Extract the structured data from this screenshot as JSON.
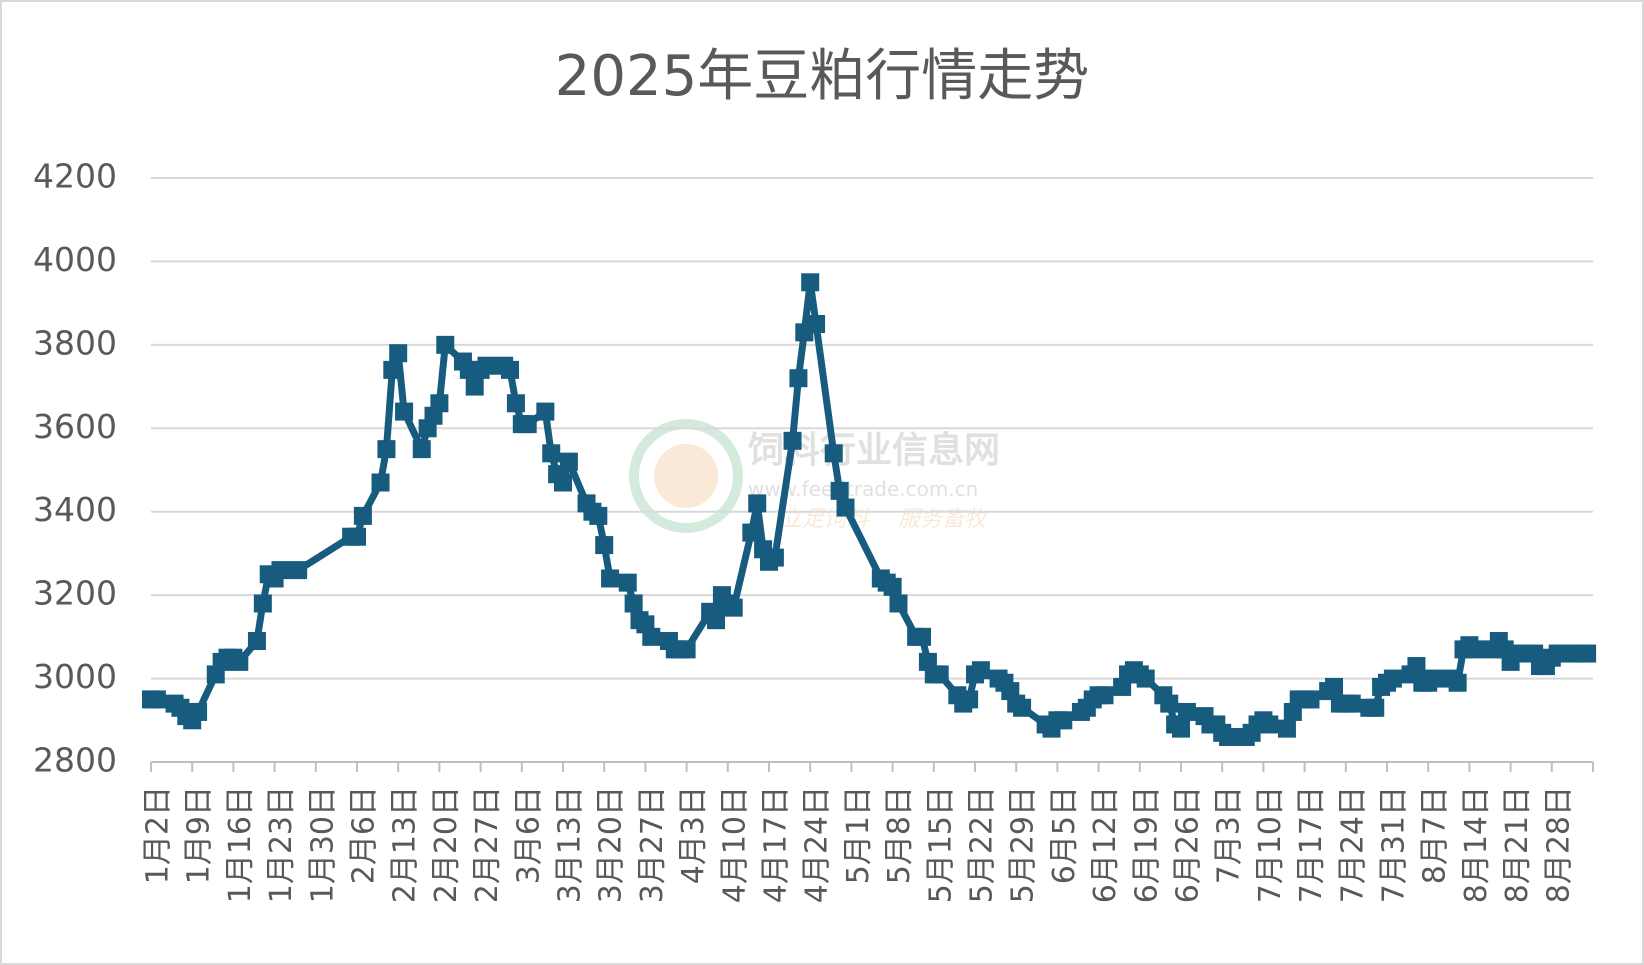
{
  "chart_data": {
    "type": "line",
    "title": "2025年豆粕行情走势",
    "watermark": [
      "饲料行业信息网",
      "www.feedtrade.com.cn",
      "立足饲料",
      "服务畜牧"
    ],
    "xlim": [
      "1月2日",
      "9月4日"
    ],
    "xticks": [
      "1月2日",
      "1月9日",
      "1月16日",
      "1月23日",
      "1月30日",
      "2月6日",
      "2月13日",
      "2月20日",
      "2月27日",
      "3月6日",
      "3月13日",
      "3月20日",
      "3月27日",
      "4月3日",
      "4月10日",
      "4月17日",
      "4月24日",
      "5月1日",
      "5月8日",
      "5月15日",
      "5月22日",
      "5月29日",
      "6月5日",
      "6月12日",
      "6月19日",
      "6月26日",
      "7月3日",
      "7月10日",
      "7月17日",
      "7月24日",
      "7月31日",
      "8月7日",
      "8月14日",
      "8月21日",
      "8月28日"
    ],
    "ylim": [
      2800,
      4200
    ],
    "yticks": [
      2800,
      3000,
      3200,
      3400,
      3600,
      3800,
      4000,
      4200
    ],
    "grid": true,
    "x": [
      "1月2日",
      "1月3日",
      "1月6日",
      "1月7日",
      "1月8日",
      "1月9日",
      "1月10日",
      "1月13日",
      "1月14日",
      "1月15日",
      "1月16日",
      "1月17日",
      "1月20日",
      "1月21日",
      "1月22日",
      "1月23日",
      "1月24日",
      "1月27日",
      "2月5日",
      "2月6日",
      "2月7日",
      "2月10日",
      "2月11日",
      "2月12日",
      "2月13日",
      "2月14日",
      "2月17日",
      "2月18日",
      "2月19日",
      "2月20日",
      "2月21日",
      "2月24日",
      "2月25日",
      "2月26日",
      "2月27日",
      "2月28日",
      "3月3日",
      "3月4日",
      "3月5日",
      "3月6日",
      "3月7日",
      "3月10日",
      "3月11日",
      "3月12日",
      "3月13日",
      "3月14日",
      "3月17日",
      "3月18日",
      "3月19日",
      "3月20日",
      "3月21日",
      "3月24日",
      "3月25日",
      "3月26日",
      "3月27日",
      "3月28日",
      "3月31日",
      "4月1日",
      "4月2日",
      "4月3日",
      "4月7日",
      "4月8日",
      "4月9日",
      "4月10日",
      "4月11日",
      "4月14日",
      "4月15日",
      "4月16日",
      "4月17日",
      "4月18日",
      "4月21日",
      "4月22日",
      "4月23日",
      "4月24日",
      "4月25日",
      "4月28日",
      "4月29日",
      "4月30日",
      "5月6日",
      "5月7日",
      "5月8日",
      "5月9日",
      "5月12日",
      "5月13日",
      "5月14日",
      "5月15日",
      "5月16日",
      "5月19日",
      "5月20日",
      "5月21日",
      "5月22日",
      "5月23日",
      "5月26日",
      "5月27日",
      "5月28日",
      "5月29日",
      "5月30日",
      "6月3日",
      "6月4日",
      "6月5日",
      "6月6日",
      "6月9日",
      "6月10日",
      "6月11日",
      "6月12日",
      "6月13日",
      "6月16日",
      "6月17日",
      "6月18日",
      "6月19日",
      "6月20日",
      "6月23日",
      "6月24日",
      "6月25日",
      "6月26日",
      "6月27日",
      "6月30日",
      "7月1日",
      "7月2日",
      "7月3日",
      "7月4日",
      "7月7日",
      "7月8日",
      "7月9日",
      "7月10日",
      "7月11日",
      "7月14日",
      "7月15日",
      "7月16日",
      "7月17日",
      "7月18日",
      "7月21日",
      "7月22日",
      "7月23日",
      "7月24日",
      "7月25日",
      "7月28日",
      "7月29日",
      "7月30日",
      "7月31日",
      "8月1日",
      "8月4日",
      "8月5日",
      "8月6日",
      "8月7日",
      "8月8日",
      "8月11日",
      "8月12日",
      "8月13日",
      "8月14日",
      "8月15日",
      "8月18日",
      "8月19日",
      "8月20日",
      "8月21日",
      "8月22日",
      "8月25日",
      "8月26日",
      "8月27日",
      "8月28日",
      "8月29日",
      "9月1日",
      "9月2日",
      "9月3日"
    ],
    "series": [
      {
        "color": "#175b7f",
        "values": [
          2950,
          2950,
          2940,
          2930,
          2910,
          2900,
          2920,
          3010,
          3040,
          3050,
          3050,
          3040,
          3090,
          3180,
          3250,
          3240,
          3260,
          3260,
          3340,
          3340,
          3390,
          3470,
          3550,
          3740,
          3780,
          3640,
          3550,
          3600,
          3630,
          3660,
          3800,
          3760,
          3740,
          3700,
          3740,
          3750,
          3750,
          3740,
          3660,
          3610,
          3610,
          3640,
          3540,
          3490,
          3470,
          3520,
          3420,
          3400,
          3390,
          3320,
          3240,
          3230,
          3180,
          3140,
          3130,
          3100,
          3090,
          3070,
          3070,
          3070,
          3160,
          3140,
          3200,
          3180,
          3170,
          3350,
          3420,
          3310,
          3280,
          3290,
          3570,
          3720,
          3830,
          3950,
          3850,
          3540,
          3450,
          3410,
          3240,
          3230,
          3220,
          3180,
          3100,
          3100,
          3040,
          3010,
          3010,
          2960,
          2940,
          2950,
          3010,
          3020,
          3000,
          2990,
          2970,
          2940,
          2930,
          2890,
          2880,
          2900,
          2900,
          2920,
          2930,
          2950,
          2960,
          2960,
          2980,
          3010,
          3020,
          3010,
          3000,
          2960,
          2940,
          2890,
          2880,
          2920,
          2910,
          2890,
          2890,
          2870,
          2860,
          2860,
          2870,
          2890,
          2900,
          2890,
          2880,
          2920,
          2950,
          2950,
          2950,
          2970,
          2980,
          2940,
          2940,
          2940,
          2930,
          2930,
          2980,
          2990,
          3000,
          3010,
          3030,
          2990,
          2990,
          3000,
          3000,
          2990,
          3070,
          3080,
          3070,
          3070,
          3090,
          3070,
          3040,
          3060,
          3060,
          3030,
          3030,
          3050,
          3060,
          3060,
          3060,
          3060
        ]
      }
    ]
  }
}
